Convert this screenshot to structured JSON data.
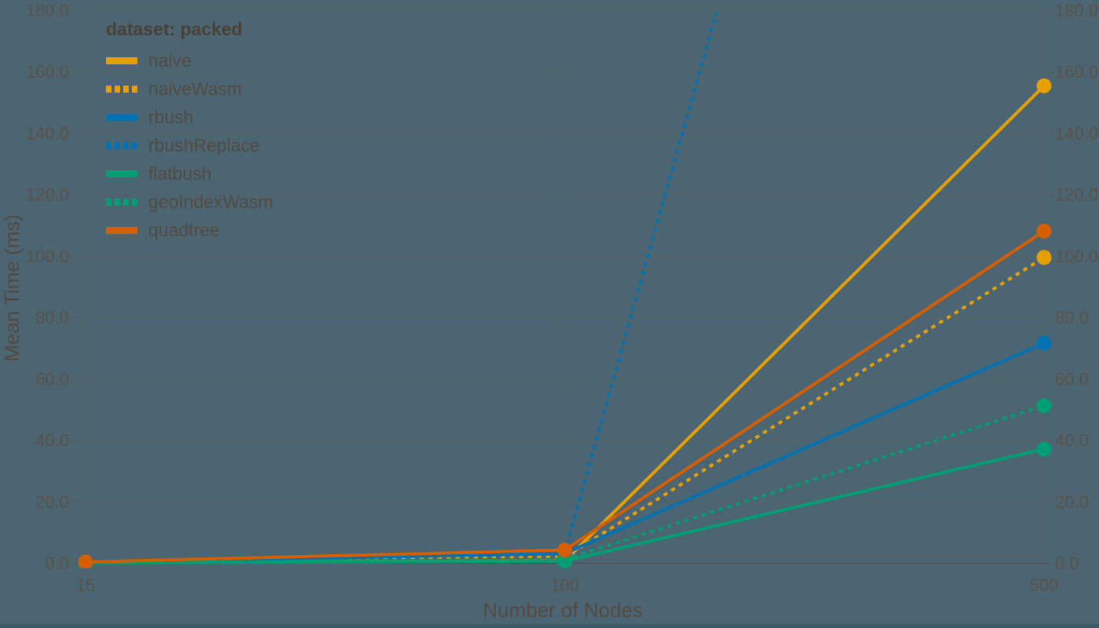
{
  "chart_data": {
    "type": "line",
    "title": "",
    "legend_title": "dataset: packed",
    "legend_position": "top-left",
    "xlabel": "Number of Nodes",
    "ylabel": "Mean Time (ms)",
    "grid": true,
    "x_categories": [
      "15",
      "100",
      "500"
    ],
    "x_scale": "point",
    "ylim": [
      0,
      180
    ],
    "y_tick_step": 20,
    "y_tick_labels": [
      "0.0",
      "20.0",
      "40.0",
      "60.0",
      "80.0",
      "100.0",
      "120.0",
      "140.0",
      "160.0",
      "180.0"
    ],
    "y_axis_mirrored_right": true,
    "series": [
      {
        "name": "naive",
        "color": "#E69F00",
        "dash": "solid",
        "values": [
          0.15,
          0.8,
          155.5
        ]
      },
      {
        "name": "naiveWasm",
        "color": "#E69F00",
        "dash": "dashed",
        "values": [
          0.25,
          2.0,
          99.6
        ]
      },
      {
        "name": "rbush",
        "color": "#0072B2",
        "dash": "solid",
        "values": [
          0.2,
          3.2,
          71.7
        ]
      },
      {
        "name": "rbushReplace",
        "color": "#0072B2",
        "dash": "dashed",
        "values": [
          0.3,
          3.5,
          560
        ],
        "clipped_above_ymax": true
      },
      {
        "name": "flatbush",
        "color": "#009E73",
        "dash": "solid",
        "values": [
          0.1,
          0.7,
          37.2
        ]
      },
      {
        "name": "geoIndexWasm",
        "color": "#009E73",
        "dash": "dashed",
        "values": [
          0.15,
          1.3,
          51.3
        ]
      },
      {
        "name": "quadtree",
        "color": "#D55E00",
        "dash": "solid",
        "values": [
          0.4,
          4.3,
          108.2
        ]
      }
    ]
  },
  "colors": {
    "background": "#4b6572",
    "bottom_strip": "#3d5965",
    "gridline": "#6b5a4b",
    "tick_label": "#5d5146",
    "axis_title": "#55493d",
    "legend_title_color": "#4a4036",
    "legend_label_color": "#544a40"
  }
}
